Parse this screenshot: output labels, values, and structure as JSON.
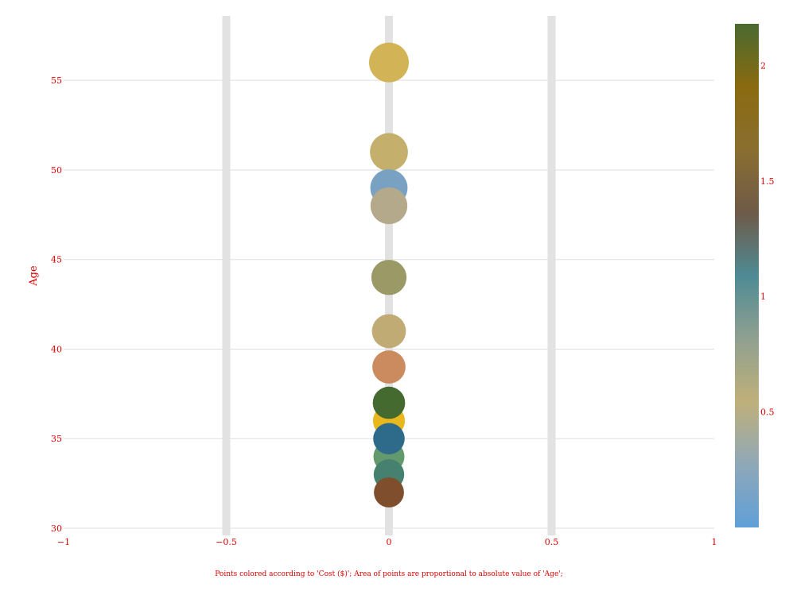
{
  "chart_data": {
    "type": "scatter",
    "title": "",
    "xlabel": "",
    "ylabel": "Age",
    "caption": "Points colored according to 'Cost ($)'; Area of points are proportional to absolute value of 'Age';",
    "xlim": [
      -1,
      1
    ],
    "ylim": [
      29.6,
      58.6
    ],
    "x_ticks": [
      -1,
      -0.5,
      0,
      0.5,
      1
    ],
    "x_tick_labels": [
      "−1",
      "−0.5",
      "0",
      "0.5",
      "1"
    ],
    "y_ticks": [
      30,
      35,
      40,
      45,
      50,
      55
    ],
    "y_tick_labels": [
      "30",
      "35",
      "40",
      "45",
      "50",
      "55"
    ],
    "grid": true,
    "colorbar": {
      "min": 0,
      "max": 2.18,
      "ticks": [
        0.5,
        1,
        1.5,
        2
      ],
      "tick_labels": [
        "0.5",
        "1",
        "1.5",
        "2"
      ],
      "colors": [
        "#5f9fd8",
        "#8fa8b8",
        "#bfb07a",
        "#8fa090",
        "#4f8a94",
        "#6e5a48",
        "#8a6e30",
        "#8a6a10",
        "#4a6a30"
      ]
    },
    "points": [
      {
        "x": 0,
        "y": 56,
        "color": "#d2b456"
      },
      {
        "x": 0,
        "y": 51,
        "color": "#c4af6c"
      },
      {
        "x": 0,
        "y": 49,
        "color": "#79a2c2"
      },
      {
        "x": 0,
        "y": 48,
        "color": "#b4a98a"
      },
      {
        "x": 0,
        "y": 44,
        "color": "#9b9966"
      },
      {
        "x": 0,
        "y": 41,
        "color": "#c1ab74"
      },
      {
        "x": 0,
        "y": 39,
        "color": "#cc8b5e"
      },
      {
        "x": 0,
        "y": 36,
        "color": "#e8b81c"
      },
      {
        "x": 0,
        "y": 37,
        "color": "#446a30"
      },
      {
        "x": 0,
        "y": 34,
        "color": "#629a6e"
      },
      {
        "x": 0,
        "y": 35,
        "color": "#2e6a8a"
      },
      {
        "x": 0,
        "y": 33,
        "color": "#46806e"
      },
      {
        "x": 0,
        "y": 32,
        "color": "#7f4e2c"
      }
    ]
  }
}
